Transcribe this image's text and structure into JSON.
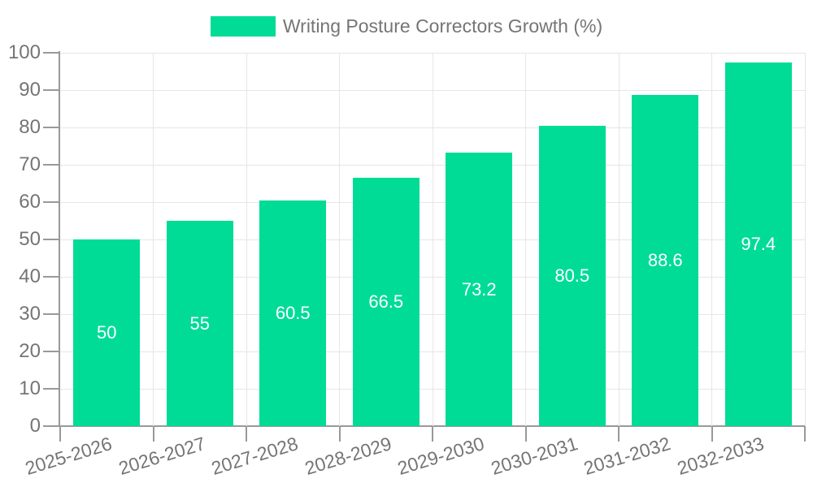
{
  "legend": {
    "label": "Writing Posture Correctors Growth (%)"
  },
  "colors": {
    "bar": "#00DC96",
    "axis": "#999999",
    "grid": "#E6E6E6",
    "tick_label": "#757575",
    "legend_label": "#757575",
    "bar_label": "#FFFFFF",
    "background": "#FFFFFF"
  },
  "chart_data": {
    "type": "bar",
    "title": "Writing Posture Correctors Growth (%)",
    "series": [
      {
        "name": "Writing Posture Correctors Growth (%)",
        "values": [
          50,
          55,
          60.5,
          66.5,
          73.2,
          80.5,
          88.6,
          97.4
        ]
      }
    ],
    "categories": [
      "2025-2026",
      "2026-2027",
      "2027-2028",
      "2028-2029",
      "2029-2030",
      "2030-2031",
      "2031-2032",
      "2032-2033"
    ],
    "values": [
      50,
      55,
      60.5,
      66.5,
      73.2,
      80.5,
      88.6,
      97.4
    ],
    "value_labels": [
      "50",
      "55",
      "60.5",
      "66.5",
      "73.2",
      "80.5",
      "88.6",
      "97.4"
    ],
    "xlabel": "",
    "ylabel": "",
    "ylim": [
      0,
      100
    ],
    "yticks": [
      0,
      10,
      20,
      30,
      40,
      50,
      60,
      70,
      80,
      90,
      100
    ],
    "grid": true,
    "legend_position": "top-center",
    "bar_label_position": "inside-center",
    "x_label_rotation_deg": -17
  }
}
